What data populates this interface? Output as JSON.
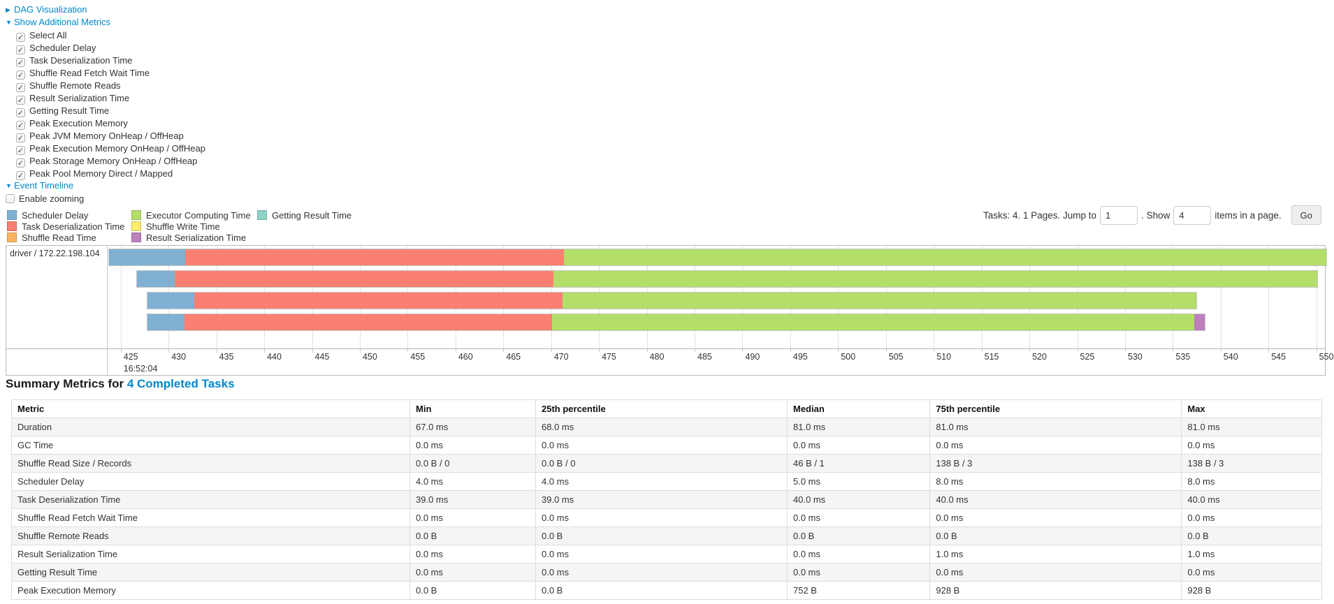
{
  "accent": {
    "link_blue": "#0088cc"
  },
  "controls": {
    "dag_link": "DAG Visualization",
    "show_metrics_link": "Show Additional Metrics",
    "metric_checkboxes": [
      {
        "label": "Select All",
        "checked": true
      },
      {
        "label": "Scheduler Delay",
        "checked": true
      },
      {
        "label": "Task Deserialization Time",
        "checked": true
      },
      {
        "label": "Shuffle Read Fetch Wait Time",
        "checked": true
      },
      {
        "label": "Shuffle Remote Reads",
        "checked": true
      },
      {
        "label": "Result Serialization Time",
        "checked": true
      },
      {
        "label": "Getting Result Time",
        "checked": true
      },
      {
        "label": "Peak Execution Memory",
        "checked": true
      },
      {
        "label": "Peak JVM Memory OnHeap / OffHeap",
        "checked": true
      },
      {
        "label": "Peak Execution Memory OnHeap / OffHeap",
        "checked": true
      },
      {
        "label": "Peak Storage Memory OnHeap / OffHeap",
        "checked": true
      },
      {
        "label": "Peak Pool Memory Direct / Mapped",
        "checked": true
      }
    ],
    "event_timeline_link": "Event Timeline",
    "enable_zooming": {
      "label": "Enable zooming",
      "checked": false
    }
  },
  "legend": {
    "columns": [
      [
        {
          "label": "Scheduler Delay",
          "color": "#80B1D3"
        },
        {
          "label": "Task Deserialization Time",
          "color": "#FB8072"
        },
        {
          "label": "Shuffle Read Time",
          "color": "#FDB462"
        }
      ],
      [
        {
          "label": "Executor Computing Time",
          "color": "#B3DE69"
        },
        {
          "label": "Shuffle Write Time",
          "color": "#FFED6F"
        },
        {
          "label": "Result Serialization Time",
          "color": "#BC80BD"
        }
      ],
      [
        {
          "label": "Getting Result Time",
          "color": "#8DD3C7"
        }
      ]
    ]
  },
  "pagination": {
    "tasks_text": "Tasks: 4. 1 Pages. Jump to",
    "jump_value": "1",
    "between_text": ". Show",
    "show_value": "4",
    "items_text": "items in a page.",
    "go_label": "Go"
  },
  "chart_data": {
    "type": "timeline",
    "title": "Event Timeline",
    "group_label": "driver / 172.22.198.104",
    "axis": {
      "unit": "milliseconds after base time",
      "time_label": "16:52:04",
      "domain_start": 423.7,
      "domain_end": 550.9,
      "tick_interval": 5,
      "ticks": [
        425,
        430,
        435,
        440,
        445,
        450,
        455,
        460,
        465,
        470,
        475,
        480,
        485,
        490,
        495,
        500,
        505,
        510,
        515,
        520,
        525,
        530,
        535,
        540,
        545,
        550
      ]
    },
    "series_colors": {
      "scheduler_delay": "#80B1D3",
      "task_deserialization": "#FB8072",
      "shuffle_read": "#FDB462",
      "executor_computing": "#B3DE69",
      "shuffle_write": "#FFED6F",
      "result_serialization": "#BC80BD",
      "getting_result": "#8DD3C7"
    },
    "tasks": [
      {
        "row": 1,
        "start_ms": 423.7,
        "segments": [
          {
            "name": "scheduler_delay",
            "ms": 8.0
          },
          {
            "name": "task_deserialization",
            "ms": 39.6
          },
          {
            "name": "executor_computing",
            "ms": 79.8
          }
        ]
      },
      {
        "row": 2,
        "start_ms": 426.6,
        "segments": [
          {
            "name": "scheduler_delay",
            "ms": 4.0
          },
          {
            "name": "task_deserialization",
            "ms": 39.6
          },
          {
            "name": "executor_computing",
            "ms": 80.0
          }
        ]
      },
      {
        "row": 3,
        "start_ms": 427.7,
        "segments": [
          {
            "name": "scheduler_delay",
            "ms": 4.9
          },
          {
            "name": "task_deserialization",
            "ms": 38.6
          },
          {
            "name": "executor_computing",
            "ms": 66.3
          }
        ]
      },
      {
        "row": 4,
        "start_ms": 427.7,
        "segments": [
          {
            "name": "scheduler_delay",
            "ms": 3.9
          },
          {
            "name": "task_deserialization",
            "ms": 38.5
          },
          {
            "name": "executor_computing",
            "ms": 67.2
          },
          {
            "name": "result_serialization",
            "ms": 1.1
          }
        ]
      }
    ]
  },
  "summary": {
    "heading_prefix": "Summary Metrics for ",
    "heading_link": "4 Completed Tasks",
    "table": {
      "headers": [
        "Metric",
        "Min",
        "25th percentile",
        "Median",
        "75th percentile",
        "Max"
      ],
      "col_widths_pct": [
        30.4,
        9.6,
        19.2,
        10.9,
        19.2,
        10.7
      ],
      "rows": [
        [
          "Duration",
          "67.0 ms",
          "68.0 ms",
          "81.0 ms",
          "81.0 ms",
          "81.0 ms"
        ],
        [
          "GC Time",
          "0.0 ms",
          "0.0 ms",
          "0.0 ms",
          "0.0 ms",
          "0.0 ms"
        ],
        [
          "Shuffle Read Size / Records",
          "0.0 B / 0",
          "0.0 B / 0",
          "46 B / 1",
          "138 B / 3",
          "138 B / 3"
        ],
        [
          "Scheduler Delay",
          "4.0 ms",
          "4.0 ms",
          "5.0 ms",
          "8.0 ms",
          "8.0 ms"
        ],
        [
          "Task Deserialization Time",
          "39.0 ms",
          "39.0 ms",
          "40.0 ms",
          "40.0 ms",
          "40.0 ms"
        ],
        [
          "Shuffle Read Fetch Wait Time",
          "0.0 ms",
          "0.0 ms",
          "0.0 ms",
          "0.0 ms",
          "0.0 ms"
        ],
        [
          "Shuffle Remote Reads",
          "0.0 B",
          "0.0 B",
          "0.0 B",
          "0.0 B",
          "0.0 B"
        ],
        [
          "Result Serialization Time",
          "0.0 ms",
          "0.0 ms",
          "0.0 ms",
          "1.0 ms",
          "1.0 ms"
        ],
        [
          "Getting Result Time",
          "0.0 ms",
          "0.0 ms",
          "0.0 ms",
          "0.0 ms",
          "0.0 ms"
        ],
        [
          "Peak Execution Memory",
          "0.0 B",
          "0.0 B",
          "752 B",
          "928 B",
          "928 B"
        ]
      ]
    }
  }
}
